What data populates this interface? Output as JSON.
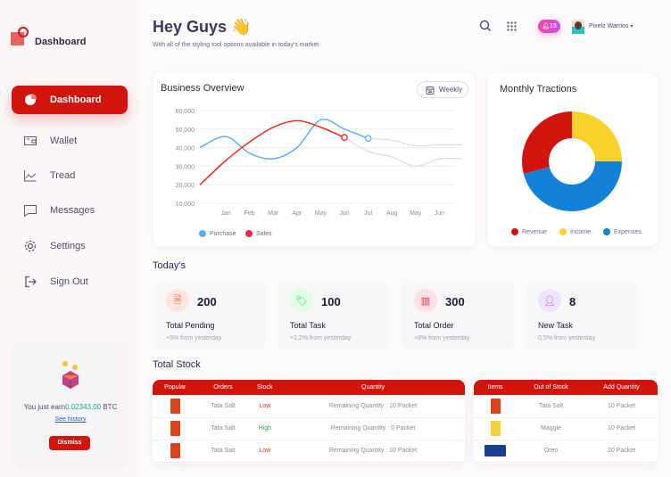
{
  "sidebar": {
    "brand": "Dashboard",
    "items": [
      {
        "label": "Dashboard",
        "icon": "pie-chart-icon",
        "active": true
      },
      {
        "label": "Wallet",
        "icon": "wallet-icon"
      },
      {
        "label": "Tread",
        "icon": "trend-icon"
      },
      {
        "label": "Messages",
        "icon": "message-icon"
      },
      {
        "label": "Settings",
        "icon": "gear-icon"
      },
      {
        "label": "Sign Out",
        "icon": "sign-out-icon"
      }
    ],
    "earn": {
      "prefix": "You just earn",
      "amount": "0.02343,00",
      "unit": "BTC",
      "history": "See history",
      "dismiss": "Dismiss"
    }
  },
  "header": {
    "title": "Hey Guys 👋",
    "subtitle": "With all of the styling tool options available in today's market",
    "notifications": "15",
    "user": "Pixelz Warrios"
  },
  "overview": {
    "title": "Business Overview",
    "period": "Weekly"
  },
  "traction": {
    "title": "Monthly Tractions"
  },
  "today": {
    "title": "Today's",
    "stats": [
      {
        "value": "200",
        "label": "Total Pending",
        "change": "+5% from yesterday",
        "color": "#fde4de",
        "fg": "#f26a4b"
      },
      {
        "value": "100",
        "label": "Total Task",
        "change": "+1,2% from yesterday",
        "color": "#e2fbe6",
        "fg": "#3ecf5a"
      },
      {
        "value": "300",
        "label": "Total Order",
        "change": "+8% from yesterday",
        "color": "#fde1e6",
        "fg": "#f0284a"
      },
      {
        "value": "8",
        "label": "New Task",
        "change": "0,5% from yesterday",
        "color": "#f0e3fd",
        "fg": "#a356f0"
      }
    ]
  },
  "stock": {
    "title": "Total Stock",
    "headers": [
      "Popular",
      "Orders",
      "Stock",
      "Quantity"
    ],
    "rows": [
      {
        "order": "Tata Salt",
        "stock": "Low",
        "quantity": "Remaining Quantity : 10 Packet"
      },
      {
        "order": "Tata Salt",
        "stock": "High",
        "quantity": "Remaining Quantity : 0 Packet"
      },
      {
        "order": "Tata Salt",
        "stock": "Low",
        "quantity": "Remaining Quantity : 10 Packet"
      }
    ],
    "out_headers": [
      "Items",
      "Out of Stock",
      "Add Quantity"
    ],
    "out_rows": [
      {
        "item": "Tata Salt",
        "qty": "10 Packet"
      },
      {
        "item": "Maggie",
        "qty": "10 Packet"
      },
      {
        "item": "Oreo",
        "qty": "20 Packet"
      }
    ]
  },
  "chart_data": [
    {
      "type": "line",
      "categories": [
        "Jan",
        "Feb",
        "Mar",
        "Apr",
        "May",
        "Jun",
        "Jul",
        "Aug",
        "May",
        "Jun"
      ],
      "yticks": [
        "60,000",
        "50,000",
        "40,000",
        "30,000",
        "20,000",
        "10,000"
      ],
      "ylim": [
        10000,
        60000
      ],
      "grid": true,
      "legend": "bottom-left",
      "series": [
        {
          "name": "Purchase",
          "color": "#5aaaf5",
          "values": [
            46000,
            37000,
            34000,
            40000,
            55000,
            50000,
            45000,
            null,
            null,
            null
          ]
        },
        {
          "name": "Sales",
          "color": "#f01d10",
          "values": [
            33000,
            43000,
            51000,
            54500,
            51000,
            45500,
            null,
            null,
            null,
            null
          ]
        },
        {
          "color": "#d6d6d6",
          "values": [
            null,
            null,
            null,
            null,
            null,
            null,
            45000,
            44000,
            41000,
            41500
          ]
        },
        {
          "color": "#d6d6d6",
          "values": [
            null,
            null,
            null,
            null,
            null,
            45500,
            38000,
            35000,
            30000,
            34000
          ]
        }
      ]
    },
    {
      "type": "pie",
      "donut": true,
      "legend": "bottom",
      "slices": [
        {
          "name": "Revenue",
          "value": 29,
          "color": "#d0150f"
        },
        {
          "name": "Income",
          "value": 25,
          "color": "#fad22e"
        },
        {
          "name": "Expenses",
          "value": 46,
          "color": "#1481d8"
        }
      ]
    }
  ]
}
